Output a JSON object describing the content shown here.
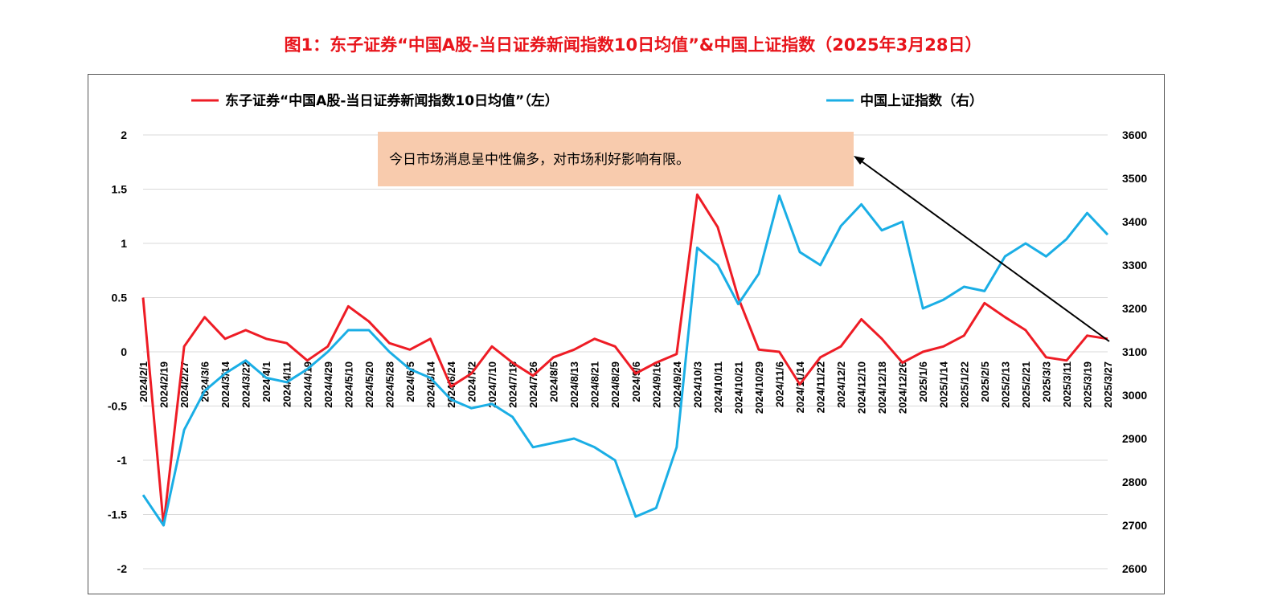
{
  "title": "图1：东子证券“中国A股-当日证券新闻指数10日均值”&中国上证指数（2025年3月28日）",
  "colors": {
    "title": "#e8141b",
    "left_series": "#ee1c25",
    "right_series": "#1aaee5",
    "annotation_bg": "#f8cbad"
  },
  "annotation": "今日市场消息呈中性偏多，对市场利好影响有限。",
  "chart_data": {
    "type": "line",
    "legend": [
      "东子证券“中国A股-当日证券新闻指数10日均值”（左）",
      "中国上证指数（右）"
    ],
    "legend_position": "top",
    "categories": [
      "2024/2/1",
      "2024/2/19",
      "2024/2/27",
      "2024/3/6",
      "2024/3/14",
      "2024/3/22",
      "2024/4/1",
      "2024/4/11",
      "2024/4/19",
      "2024/4/29",
      "2024/5/10",
      "2024/5/20",
      "2024/5/28",
      "2024/6/5",
      "2024/6/14",
      "2024/6/24",
      "2024/7/2",
      "2024/7/10",
      "2024/7/18",
      "2024/7/26",
      "2024/8/5",
      "2024/8/13",
      "2024/8/21",
      "2024/8/29",
      "2024/9/6",
      "2024/9/16",
      "2024/9/24",
      "2024/10/3",
      "2024/10/11",
      "2024/10/21",
      "2024/10/29",
      "2024/11/6",
      "2024/11/14",
      "2024/11/22",
      "2024/12/2",
      "2024/12/10",
      "2024/12/18",
      "2024/12/26",
      "2025/1/6",
      "2025/1/14",
      "2025/1/22",
      "2025/2/5",
      "2025/2/13",
      "2025/2/21",
      "2025/3/3",
      "2025/3/11",
      "2025/3/19",
      "2025/3/27"
    ],
    "y_left": {
      "min": -2,
      "max": 2,
      "ticks": [
        2,
        1.5,
        1,
        0.5,
        0,
        -0.5,
        -1,
        -1.5,
        -2
      ]
    },
    "y_right": {
      "min": 2600,
      "max": 3600,
      "ticks": [
        3600,
        3500,
        3400,
        3300,
        3200,
        3100,
        3000,
        2900,
        2800,
        2700,
        2600
      ]
    },
    "series": [
      {
        "name": "东子证券“中国A股-当日证券新闻指数10日均值”",
        "axis": "left",
        "values": [
          0.5,
          -1.6,
          0.05,
          0.32,
          0.12,
          0.2,
          0.12,
          0.08,
          -0.08,
          0.05,
          0.42,
          0.28,
          0.08,
          0.02,
          0.12,
          -0.32,
          -0.2,
          0.05,
          -0.1,
          -0.22,
          -0.05,
          0.02,
          0.12,
          0.05,
          -0.2,
          -0.1,
          -0.02,
          1.45,
          1.15,
          0.5,
          0.02,
          0.0,
          -0.3,
          -0.05,
          0.05,
          0.3,
          0.12,
          -0.1,
          0.0,
          0.05,
          0.15,
          0.45,
          0.32,
          0.2,
          -0.05,
          -0.08,
          0.15,
          0.12
        ]
      },
      {
        "name": "中国上证指数",
        "axis": "right",
        "values": [
          2770,
          2700,
          2920,
          3010,
          3050,
          3080,
          3040,
          3030,
          3060,
          3100,
          3150,
          3150,
          3100,
          3060,
          3040,
          2990,
          2970,
          2980,
          2950,
          2880,
          2890,
          2900,
          2880,
          2850,
          2720,
          2740,
          2880,
          3340,
          3300,
          3210,
          3280,
          3460,
          3330,
          3300,
          3390,
          3440,
          3380,
          3400,
          3200,
          3220,
          3250,
          3240,
          3320,
          3350,
          3320,
          3360,
          3420,
          3370
        ]
      }
    ]
  }
}
